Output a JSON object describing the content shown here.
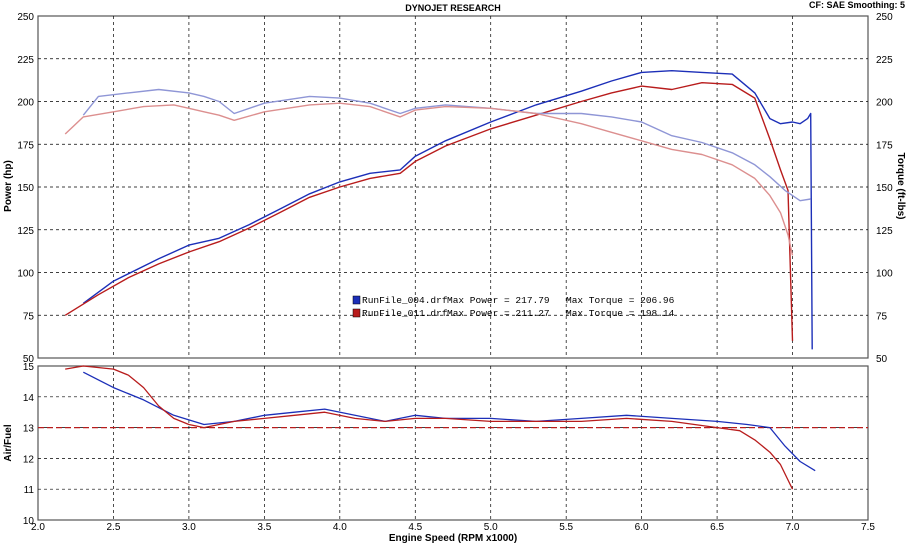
{
  "header": {
    "title": "DYNOJET RESEARCH",
    "corner": "CF: SAE  Smoothing: 5"
  },
  "colors": {
    "run1": "#1c2fb8",
    "run2": "#b81c1c",
    "run1_torque": "#8f96d6",
    "run2_torque": "#dc8f8f",
    "afr_target": "#b81c1c"
  },
  "legend": [
    {
      "icon": "blue-square-icon",
      "file": "RunFile_004.drf",
      "max_power_label": "Max Power = 217.79",
      "max_torque_label": "Max Torque = 206.96"
    },
    {
      "icon": "red-square-icon",
      "file": "RunFile_011.drf",
      "max_power_label": "Max Power = 211.27",
      "max_torque_label": "Max Torque = 198.14"
    }
  ],
  "chart_data": [
    {
      "type": "line",
      "xlabel": "Engine Speed (RPM x1000)",
      "ylabel": "Power (hp)",
      "y2label": "Torque (ft-lbs)",
      "xlim": [
        2.0,
        7.5
      ],
      "ylim": [
        50,
        250
      ],
      "y2lim": [
        50,
        250
      ],
      "x_ticks": [
        "2.0",
        "2.5",
        "3.0",
        "3.5",
        "4.0",
        "4.5",
        "5.0",
        "5.5",
        "6.0",
        "6.5",
        "7.0",
        "7.5"
      ],
      "y_ticks": [
        "50",
        "75",
        "100",
        "125",
        "150",
        "175",
        "200",
        "225",
        "250"
      ],
      "grid": true,
      "legend_position": "center",
      "series": [
        {
          "name": "RunFile_004.drf",
          "metric": "Power",
          "axis": "left",
          "x": [
            2.3,
            2.5,
            2.8,
            3.0,
            3.2,
            3.4,
            3.6,
            3.8,
            4.0,
            4.2,
            4.4,
            4.5,
            4.7,
            5.0,
            5.3,
            5.6,
            5.8,
            6.0,
            6.2,
            6.4,
            6.6,
            6.75,
            6.85,
            6.92,
            7.0,
            7.05,
            7.1,
            7.12,
            7.13
          ],
          "values": [
            82,
            95,
            108,
            116,
            120,
            128,
            137,
            146,
            153,
            158,
            160,
            168,
            177,
            188,
            198,
            206,
            212,
            217,
            218,
            217,
            216,
            205,
            190,
            187,
            188,
            187,
            190,
            193,
            55
          ]
        },
        {
          "name": "RunFile_011.drf",
          "metric": "Power",
          "axis": "left",
          "x": [
            2.18,
            2.4,
            2.6,
            2.8,
            3.0,
            3.2,
            3.4,
            3.6,
            3.8,
            4.0,
            4.2,
            4.4,
            4.5,
            4.7,
            5.0,
            5.3,
            5.6,
            5.8,
            6.0,
            6.2,
            6.4,
            6.6,
            6.75,
            6.85,
            6.92,
            6.97,
            7.0
          ],
          "values": [
            75,
            87,
            97,
            105,
            112,
            118,
            126,
            135,
            144,
            150,
            155,
            158,
            165,
            174,
            184,
            192,
            200,
            205,
            209,
            207,
            211,
            210,
            202,
            178,
            160,
            148,
            60
          ]
        },
        {
          "name": "RunFile_004.drf",
          "metric": "Torque",
          "axis": "right",
          "x": [
            2.3,
            2.4,
            2.6,
            2.8,
            3.0,
            3.1,
            3.2,
            3.3,
            3.5,
            3.8,
            4.0,
            4.2,
            4.4,
            4.5,
            4.7,
            5.0,
            5.3,
            5.6,
            5.8,
            6.0,
            6.2,
            6.4,
            6.6,
            6.75,
            6.85,
            6.95,
            7.05,
            7.12
          ],
          "values": [
            192,
            203,
            205,
            207,
            205,
            203,
            200,
            193,
            199,
            203,
            202,
            199,
            193,
            196,
            198,
            196,
            193,
            193,
            191,
            188,
            180,
            176,
            170,
            163,
            156,
            148,
            142,
            143
          ]
        },
        {
          "name": "RunFile_011.drf",
          "metric": "Torque",
          "axis": "right",
          "x": [
            2.18,
            2.3,
            2.5,
            2.7,
            2.9,
            3.0,
            3.1,
            3.2,
            3.3,
            3.5,
            3.8,
            4.0,
            4.2,
            4.4,
            4.5,
            4.7,
            5.0,
            5.3,
            5.6,
            5.8,
            6.0,
            6.2,
            6.4,
            6.6,
            6.75,
            6.85,
            6.92,
            6.97,
            7.0
          ],
          "values": [
            181,
            191,
            194,
            197,
            198,
            196,
            194,
            192,
            189,
            194,
            198,
            199,
            197,
            191,
            195,
            197,
            196,
            193,
            187,
            182,
            177,
            172,
            169,
            163,
            155,
            145,
            135,
            122,
            110
          ]
        }
      ]
    },
    {
      "type": "line",
      "xlabel": "Engine Speed (RPM x1000)",
      "ylabel": "Air/Fuel",
      "xlim": [
        2.0,
        7.5
      ],
      "ylim": [
        10,
        15
      ],
      "x_ticks": [
        "2.0",
        "2.5",
        "3.0",
        "3.5",
        "4.0",
        "4.5",
        "5.0",
        "5.5",
        "6.0",
        "6.5",
        "7.0",
        "7.5"
      ],
      "y_ticks": [
        "10",
        "11",
        "12",
        "13",
        "14",
        "15"
      ],
      "grid": true,
      "reference_line": 13.0,
      "series": [
        {
          "name": "RunFile_004.drf",
          "x": [
            2.3,
            2.5,
            2.7,
            2.9,
            3.1,
            3.3,
            3.5,
            3.7,
            3.9,
            4.1,
            4.3,
            4.5,
            4.7,
            5.0,
            5.3,
            5.6,
            5.9,
            6.2,
            6.5,
            6.7,
            6.85,
            6.95,
            7.05,
            7.15
          ],
          "values": [
            14.8,
            14.3,
            13.9,
            13.4,
            13.1,
            13.2,
            13.4,
            13.5,
            13.6,
            13.4,
            13.2,
            13.4,
            13.3,
            13.3,
            13.2,
            13.3,
            13.4,
            13.3,
            13.2,
            13.1,
            13.0,
            12.4,
            11.9,
            11.6
          ]
        },
        {
          "name": "RunFile_011.drf",
          "x": [
            2.18,
            2.3,
            2.5,
            2.6,
            2.7,
            2.8,
            2.9,
            3.0,
            3.1,
            3.3,
            3.5,
            3.7,
            3.9,
            4.1,
            4.3,
            4.5,
            4.7,
            5.0,
            5.3,
            5.6,
            5.9,
            6.2,
            6.5,
            6.65,
            6.75,
            6.85,
            6.92,
            6.97,
            7.0
          ],
          "values": [
            14.9,
            15.0,
            14.9,
            14.7,
            14.3,
            13.7,
            13.3,
            13.1,
            13.0,
            13.2,
            13.3,
            13.4,
            13.5,
            13.3,
            13.2,
            13.3,
            13.3,
            13.2,
            13.2,
            13.2,
            13.3,
            13.2,
            13.0,
            12.9,
            12.6,
            12.2,
            11.8,
            11.3,
            11.0
          ]
        }
      ]
    }
  ]
}
